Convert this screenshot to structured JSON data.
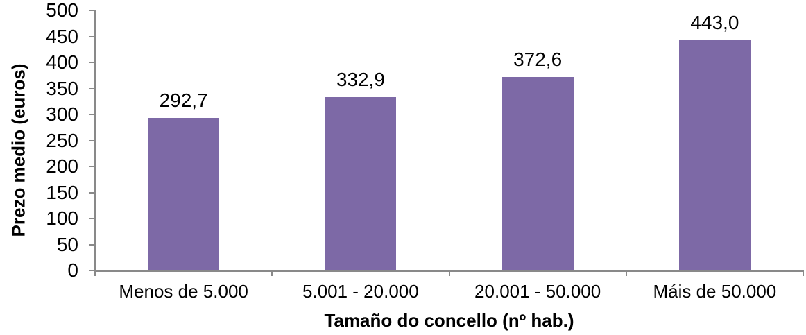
{
  "chart_data": {
    "type": "bar",
    "title": "",
    "categories": [
      "Menos de 5.000",
      "5.001 - 20.000",
      "20.001 - 50.000",
      "Máis de 50.000"
    ],
    "values": [
      292.7,
      332.9,
      372.6,
      443.0
    ],
    "value_labels": [
      "292,7",
      "332,9",
      "372,6",
      "443,0"
    ],
    "xlabel": "Tamaño do concello (nº hab.)",
    "ylabel": "Prezo medio (euros)",
    "ylim": [
      0,
      500
    ],
    "yticks": [
      0,
      50,
      100,
      150,
      200,
      250,
      300,
      350,
      400,
      450,
      500
    ],
    "grid": false,
    "legend": false,
    "colors": {
      "bar": "#7D69A6",
      "axis": "#898989",
      "text": "#000000",
      "background": "#FFFFFF"
    }
  }
}
